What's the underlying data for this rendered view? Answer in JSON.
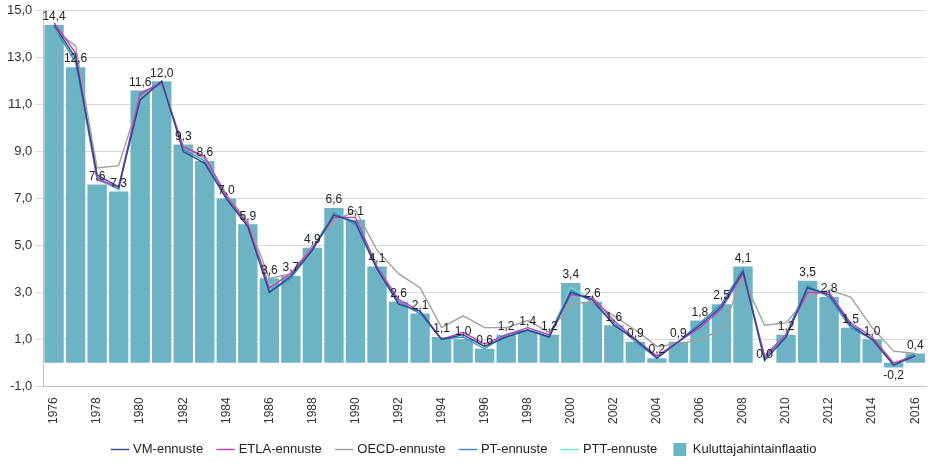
{
  "chart_data": {
    "type": "bar",
    "categories": [
      "1976",
      null,
      "1978",
      null,
      "1980",
      null,
      "1982",
      null,
      "1984",
      null,
      "1986",
      null,
      "1988",
      null,
      "1990",
      null,
      "1992",
      null,
      "1994",
      null,
      "1996",
      null,
      "1998",
      null,
      "2000",
      null,
      "2002",
      null,
      "2004",
      null,
      "2006",
      null,
      "2008",
      null,
      "2010",
      null,
      "2012",
      null,
      "2014",
      null,
      "2016"
    ],
    "series": [
      {
        "name": "Kuluttajahintainflaatio",
        "type": "bar",
        "color": "#6cb4c4",
        "values": [
          14.4,
          12.6,
          7.6,
          7.3,
          11.6,
          12.0,
          9.3,
          8.6,
          7.0,
          5.9,
          3.6,
          3.7,
          4.9,
          6.6,
          6.1,
          4.1,
          2.6,
          2.1,
          1.1,
          1.0,
          0.6,
          1.2,
          1.4,
          1.2,
          3.4,
          2.6,
          1.6,
          0.9,
          0.2,
          0.9,
          1.8,
          2.5,
          4.1,
          0.0,
          1.2,
          3.5,
          2.8,
          1.5,
          1.0,
          -0.2,
          0.4
        ],
        "value_labels": [
          "14,4",
          "12,6",
          "7,6",
          "7,3",
          "11,6",
          "12,0",
          "9,3",
          "8,6",
          "7,0",
          "5,9",
          "3,6",
          "3,7",
          "4,9",
          "6,6",
          "6,1",
          "4,1",
          "2,6",
          "2,1",
          "1,1",
          "1,0",
          "0,6",
          "1,2",
          "1,4",
          "1,2",
          "3,4",
          "2,6",
          "1,6",
          "0,9",
          "0,2",
          "0,9",
          "1,8",
          "2,5",
          "4,1",
          "0,0",
          "1,2",
          "3,5",
          "2,8",
          "1,5",
          "1,0",
          "-0,2",
          "0,4"
        ]
      },
      {
        "name": "VM-ennuste",
        "type": "line",
        "color": "#33458f",
        "values": [
          14.4,
          13.0,
          8.0,
          7.5,
          11.2,
          12.0,
          9.0,
          8.5,
          7.0,
          5.8,
          3.0,
          3.7,
          4.8,
          6.3,
          6.0,
          4.0,
          2.5,
          2.2,
          1.0,
          1.2,
          0.7,
          1.1,
          1.4,
          1.1,
          3.0,
          2.7,
          1.6,
          1.0,
          0.2,
          0.9,
          1.6,
          2.4,
          3.9,
          0.1,
          1.1,
          3.2,
          2.9,
          1.6,
          1.0,
          -0.1,
          0.3
        ]
      },
      {
        "name": "ETLA-ennuste",
        "type": "line",
        "color": "#c23fb5",
        "values": [
          14.5,
          13.2,
          7.8,
          7.5,
          11.5,
          11.9,
          9.2,
          8.8,
          7.1,
          5.9,
          3.2,
          3.8,
          4.9,
          6.2,
          6.2,
          4.1,
          2.7,
          2.2,
          1.0,
          1.3,
          0.8,
          1.2,
          1.5,
          1.2,
          2.9,
          2.8,
          1.8,
          1.0,
          0.3,
          0.9,
          1.5,
          2.3,
          3.8,
          0.3,
          1.2,
          3.0,
          3.0,
          1.7,
          1.1,
          0.0,
          0.3
        ]
      },
      {
        "name": "OECD-ennuste",
        "type": "line",
        "color": "#a0a0a0",
        "values": [
          14.2,
          13.5,
          8.3,
          8.4,
          11.3,
          12.0,
          9.2,
          8.7,
          7.2,
          6.0,
          3.6,
          3.8,
          5.0,
          6.0,
          6.5,
          4.8,
          3.8,
          3.2,
          1.5,
          2.0,
          1.5,
          1.5,
          1.8,
          1.3,
          2.5,
          2.6,
          2.0,
          1.4,
          0.7,
          0.8,
          1.0,
          1.4,
          3.6,
          1.6,
          1.7,
          2.8,
          3.1,
          2.8,
          1.5,
          0.5,
          0.4
        ]
      },
      {
        "name": "PT-ennuste",
        "type": "line",
        "color": "#3a8fc2",
        "values": [
          14.3,
          12.8,
          7.9,
          7.4,
          11.4,
          12.0,
          9.1,
          8.6,
          7.0,
          5.9,
          3.0,
          3.6,
          4.8,
          6.4,
          5.9,
          4.0,
          2.6,
          2.1,
          1.0,
          1.1,
          0.6,
          1.2,
          1.4,
          1.1,
          3.1,
          2.6,
          1.7,
          0.9,
          0.2,
          0.9,
          1.7,
          2.5,
          4.0,
          0.2,
          1.2,
          3.3,
          2.8,
          1.5,
          1.0,
          -0.1,
          0.4
        ]
      },
      {
        "name": "PTT-ennuste",
        "type": "line",
        "color": "#6fe0c8",
        "values": [
          14.4,
          12.9,
          7.8,
          7.4,
          11.5,
          11.9,
          9.2,
          8.7,
          7.0,
          5.9,
          3.3,
          3.7,
          4.9,
          6.4,
          6.0,
          4.1,
          2.6,
          2.1,
          1.0,
          1.2,
          0.7,
          1.2,
          1.4,
          1.2,
          3.2,
          2.7,
          1.7,
          1.0,
          0.2,
          0.9,
          1.7,
          2.4,
          3.9,
          0.2,
          1.2,
          3.3,
          2.9,
          1.6,
          1.0,
          -0.1,
          0.4
        ]
      }
    ],
    "ylim": [
      -1,
      15
    ],
    "yticks": [
      {
        "value": -1,
        "label": "-1,0"
      },
      {
        "value": 1,
        "label": "1,0"
      },
      {
        "value": 3,
        "label": "3,0"
      },
      {
        "value": 5,
        "label": "5,0"
      },
      {
        "value": 7,
        "label": "7,0"
      },
      {
        "value": 9,
        "label": "9,0"
      },
      {
        "value": 11,
        "label": "11,0"
      },
      {
        "value": 13,
        "label": "13,0"
      },
      {
        "value": 15,
        "label": "15,0"
      }
    ],
    "grid": true,
    "legend": "bottom",
    "data_labels": true
  }
}
